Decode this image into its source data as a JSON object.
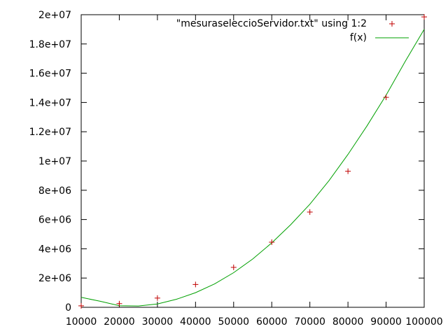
{
  "chart_data": {
    "type": "scatter",
    "xlim": [
      10000,
      100000
    ],
    "ylim": [
      0,
      20000000
    ],
    "x_ticks": [
      {
        "value": 10000,
        "label": "10000"
      },
      {
        "value": 20000,
        "label": "20000"
      },
      {
        "value": 30000,
        "label": "30000"
      },
      {
        "value": 40000,
        "label": "40000"
      },
      {
        "value": 50000,
        "label": "50000"
      },
      {
        "value": 60000,
        "label": "60000"
      },
      {
        "value": 70000,
        "label": "70000"
      },
      {
        "value": 80000,
        "label": "80000"
      },
      {
        "value": 90000,
        "label": "90000"
      },
      {
        "value": 100000,
        "label": "100000"
      }
    ],
    "y_ticks": [
      {
        "value": 0,
        "label": "0"
      },
      {
        "value": 2000000,
        "label": "2e+06"
      },
      {
        "value": 4000000,
        "label": "4e+06"
      },
      {
        "value": 6000000,
        "label": "6e+06"
      },
      {
        "value": 8000000,
        "label": "8e+06"
      },
      {
        "value": 10000000,
        "label": "1e+07"
      },
      {
        "value": 12000000,
        "label": "1.2e+07"
      },
      {
        "value": 14000000,
        "label": "1.4e+07"
      },
      {
        "value": 16000000,
        "label": "1.6e+07"
      },
      {
        "value": 18000000,
        "label": "1.8e+07"
      },
      {
        "value": 20000000,
        "label": "2e+07"
      }
    ],
    "grid": false,
    "legend_position": "top-right",
    "series": [
      {
        "name": "\"mesuraseleccioServidor.txt\" using 1:2",
        "style": "points",
        "marker": "plus",
        "color": "#c00000",
        "x": [
          10000,
          20000,
          30000,
          40000,
          50000,
          60000,
          70000,
          80000,
          90000,
          100000
        ],
        "y": [
          100000,
          250000,
          630000,
          1560000,
          2730000,
          4450000,
          6510000,
          9300000,
          14350000,
          19850000
        ]
      },
      {
        "name": "f(x)",
        "style": "line",
        "color": "#00a000",
        "x": [
          10000,
          15000,
          20000,
          25000,
          30000,
          35000,
          40000,
          45000,
          50000,
          55000,
          60000,
          65000,
          70000,
          75000,
          80000,
          85000,
          90000,
          95000,
          100000
        ],
        "y": [
          680000,
          410000,
          110000,
          90000,
          230000,
          550000,
          1000000,
          1600000,
          2370000,
          3300000,
          4400000,
          5650000,
          7050000,
          8650000,
          10450000,
          12400000,
          14500000,
          16800000,
          19000000
        ]
      }
    ]
  }
}
